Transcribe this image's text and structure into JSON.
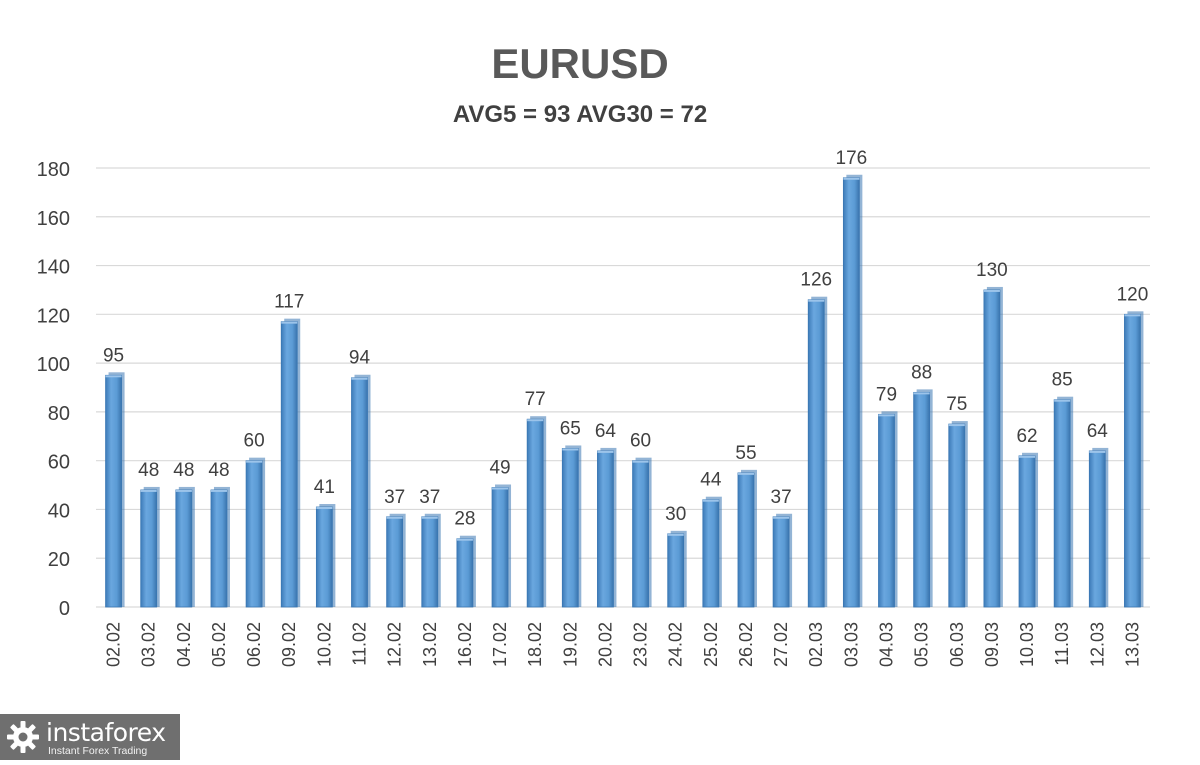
{
  "chart_data": {
    "type": "bar",
    "title": "EURUSD",
    "subtitle": "AVG5 = 93 AVG30 = 72",
    "xlabel": "",
    "ylabel": "",
    "categories": [
      "02.02",
      "03.02",
      "04.02",
      "05.02",
      "06.02",
      "09.02",
      "10.02",
      "11.02",
      "12.02",
      "13.02",
      "16.02",
      "17.02",
      "18.02",
      "19.02",
      "20.02",
      "23.02",
      "24.02",
      "25.02",
      "26.02",
      "27.02",
      "02.03",
      "03.03",
      "04.03",
      "05.03",
      "06.03",
      "09.03",
      "10.03",
      "11.03",
      "12.03",
      "13.03"
    ],
    "values": [
      95,
      48,
      48,
      48,
      60,
      117,
      41,
      94,
      37,
      37,
      28,
      49,
      77,
      65,
      64,
      60,
      30,
      44,
      55,
      37,
      126,
      176,
      79,
      88,
      75,
      130,
      62,
      85,
      64,
      120
    ],
    "ylim": [
      0,
      180
    ],
    "yticks": [
      0,
      20,
      40,
      60,
      80,
      100,
      120,
      140,
      160,
      180
    ],
    "grid": true,
    "legend": "none",
    "data_labels": true,
    "colors": {
      "bar": "#5b9bd5",
      "bar_dark": "#3a77b3",
      "bar_light": "#9cc4ea",
      "grid": "#d9d9d9",
      "text": "#404040"
    }
  },
  "watermark": {
    "name": "instaforex",
    "tagline": "Instant Forex Trading",
    "icon": "gear-icon"
  }
}
